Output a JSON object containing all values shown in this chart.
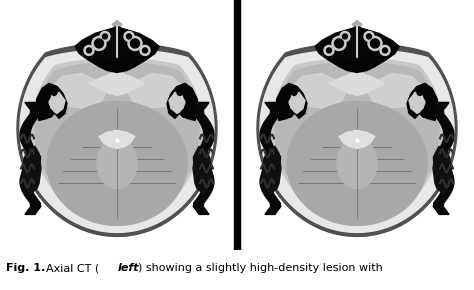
{
  "background_color": "#ffffff",
  "fig_width": 4.74,
  "fig_height": 2.9,
  "caption_fontsize": 8.0,
  "image_bg": "#000000",
  "caption_line1_pre": "Fig. 1.",
  "caption_line1_mid": "  Axial CT (",
  "caption_bold": "left",
  "caption_post": ") showing a slightly high-density lesion with"
}
